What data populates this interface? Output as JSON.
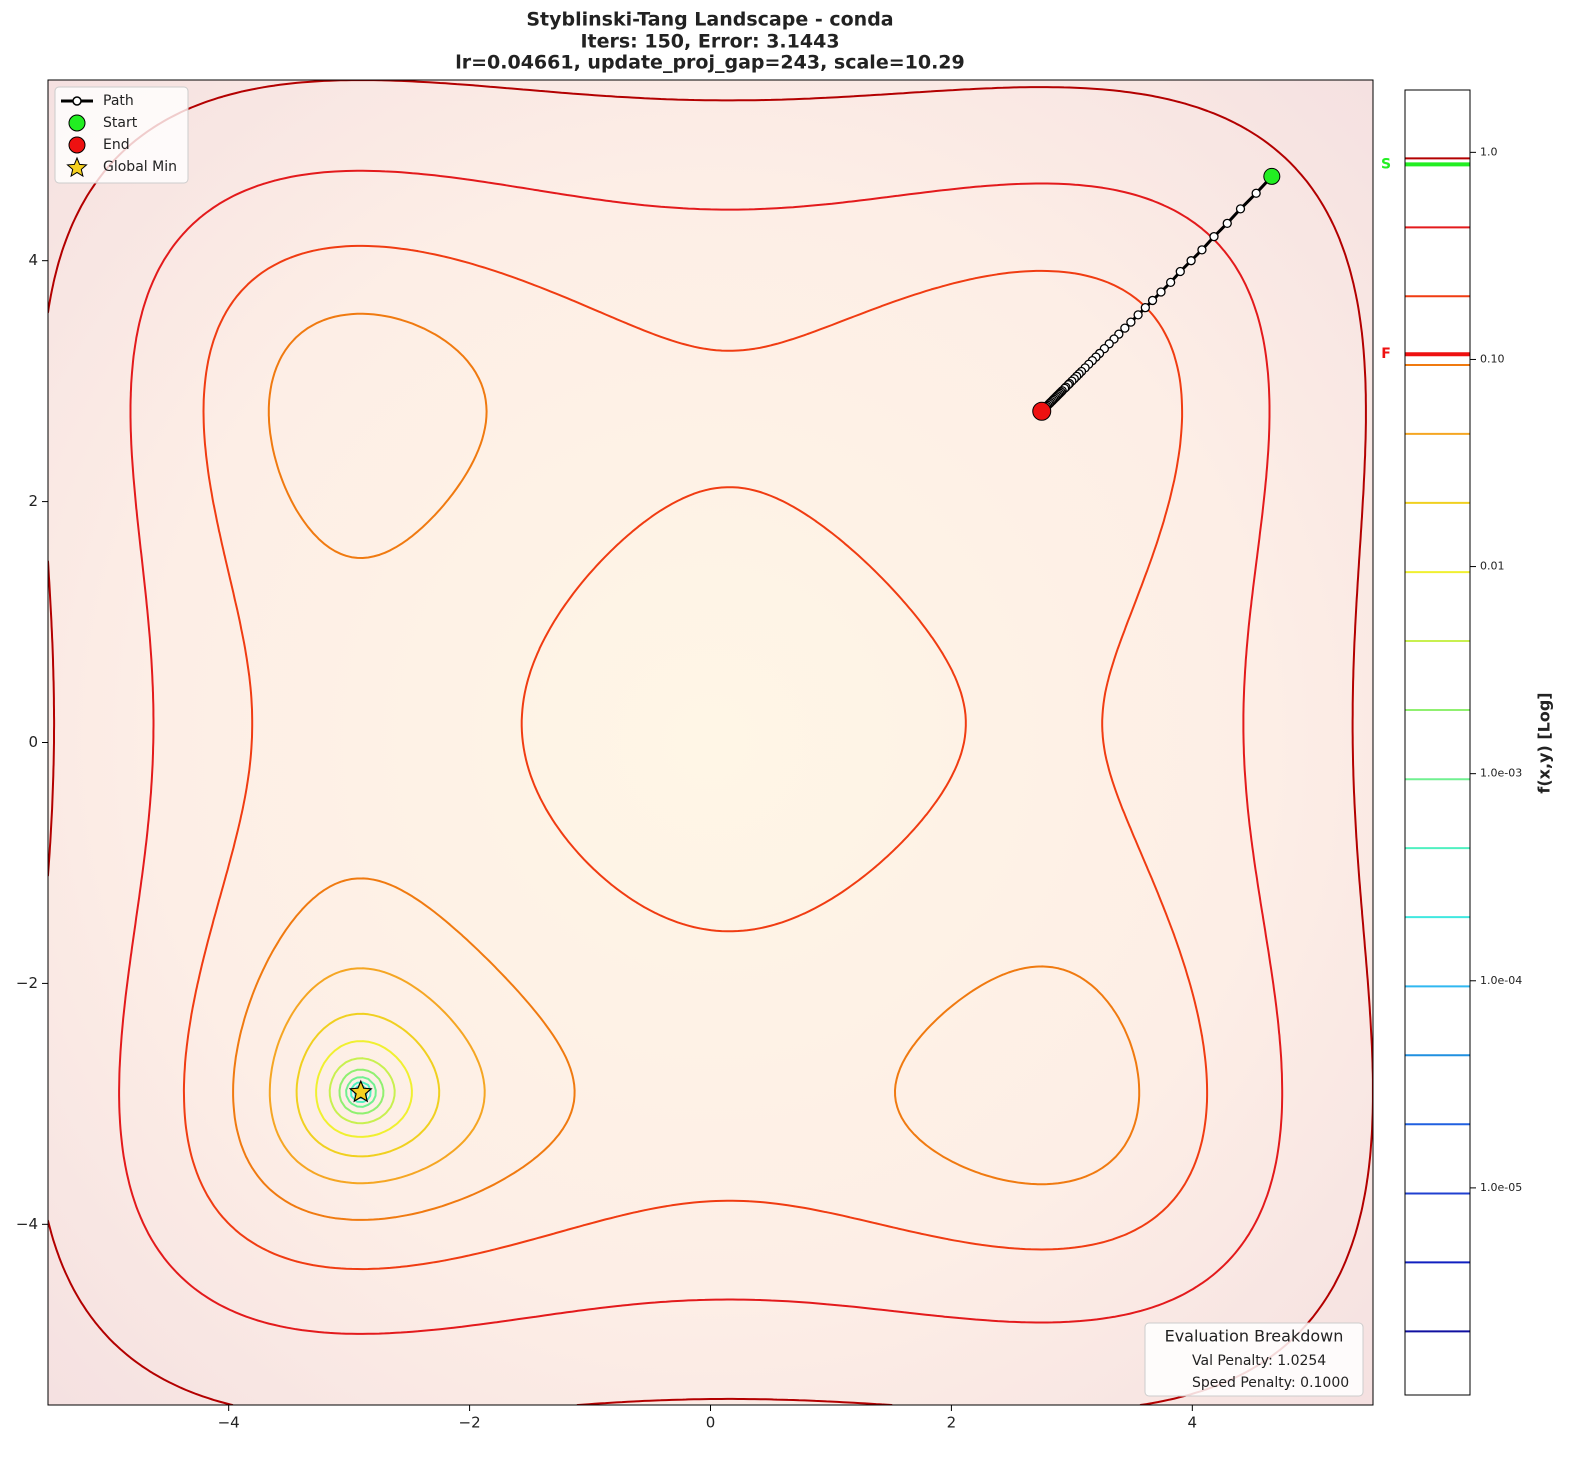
{
  "chart_data": {
    "type": "contour",
    "title": [
      "Styblinski-Tang Landscape - conda",
      "Iters: 150, Error: 3.1443",
      "lr=0.04661, update_proj_gap=243, scale=10.29"
    ],
    "xlim": [
      -5.5,
      5.5
    ],
    "ylim": [
      -5.5,
      5.5
    ],
    "xticks": [
      {
        "value": -4,
        "label": "−4"
      },
      {
        "value": -2,
        "label": "−2"
      },
      0,
      2,
      4
    ],
    "yticks": [
      {
        "value": -4,
        "label": "−4"
      },
      {
        "value": -2,
        "label": "−2"
      },
      0,
      2,
      4
    ],
    "contour_levels": [
      0.935,
      0.434,
      0.202,
      0.094,
      0.0437,
      0.0203,
      0.0094,
      0.00437,
      0.00203,
      0.00094,
      0.000437,
      0.000203,
      9.4e-05,
      4.37e-05,
      2.03e-05,
      9.4e-06,
      4.37e-06,
      2.03e-06
    ],
    "contour_colors": [
      "#b30000",
      "#e31a1c",
      "#f03c12",
      "#f07a10",
      "#f5a623",
      "#f0d020",
      "#f0f030",
      "#c8f050",
      "#90f070",
      "#70f090",
      "#50f0c0",
      "#40e8e0",
      "#30b8f0",
      "#2090e0",
      "#2060e0",
      "#2040d0",
      "#1020c0",
      "#1010a0"
    ],
    "path": {
      "name": "Path",
      "color": "#000000",
      "x": [
        4.66,
        4.53,
        4.4,
        4.29,
        4.18,
        4.08,
        3.99,
        3.9,
        3.82,
        3.74,
        3.67,
        3.61,
        3.55,
        3.49,
        3.44,
        3.39,
        3.35,
        3.31,
        3.27,
        3.23,
        3.2,
        3.17,
        3.14,
        3.11,
        3.08,
        3.06,
        3.04,
        3.02,
        3.0,
        2.98,
        2.97,
        2.95,
        2.94,
        2.92,
        2.91,
        2.9,
        2.89,
        2.88,
        2.87,
        2.86,
        2.85,
        2.84,
        2.83,
        2.82,
        2.81,
        2.8,
        2.79,
        2.78,
        2.77,
        2.76,
        2.75
      ],
      "y": [
        4.7,
        4.56,
        4.43,
        4.31,
        4.2,
        4.09,
        4.0,
        3.91,
        3.82,
        3.74,
        3.67,
        3.61,
        3.55,
        3.49,
        3.44,
        3.39,
        3.35,
        3.31,
        3.27,
        3.23,
        3.2,
        3.17,
        3.14,
        3.11,
        3.08,
        3.06,
        3.04,
        3.02,
        3.0,
        2.98,
        2.97,
        2.95,
        2.94,
        2.92,
        2.91,
        2.9,
        2.89,
        2.88,
        2.87,
        2.86,
        2.85,
        2.84,
        2.83,
        2.82,
        2.81,
        2.8,
        2.79,
        2.78,
        2.77,
        2.76,
        2.75
      ]
    },
    "start": {
      "name": "Start",
      "x": 4.66,
      "y": 4.7,
      "color": "#22ee22"
    },
    "end": {
      "name": "End",
      "x": 2.75,
      "y": 2.75,
      "color": "#ee1111"
    },
    "global_min": {
      "name": "Global Min",
      "x": -2.9035,
      "y": -2.9035,
      "color": "#f5d020"
    },
    "colorbar": {
      "label": "f(x,y) [Log]",
      "log": true,
      "lim": [
        1e-06,
        2
      ],
      "ticks": [
        {
          "value": 1,
          "label": "1.0"
        },
        {
          "value": 0.1,
          "label": "0.10"
        },
        0.01,
        {
          "value": 0.001,
          "label": "1.0e-03"
        },
        {
          "value": 0.0001,
          "label": "1.0e-04"
        },
        {
          "value": 1e-05,
          "label": "1.0e-05"
        }
      ],
      "start_marker": {
        "label": "S",
        "value": 0.875,
        "color": "#22ee22"
      },
      "end_marker": {
        "label": "F",
        "value": 0.106,
        "color": "#ee1111"
      }
    },
    "evaluation": {
      "title": "Evaluation Breakdown",
      "lines": [
        "Val Penalty: 1.0254",
        "Speed Penalty: 0.1000"
      ]
    }
  }
}
